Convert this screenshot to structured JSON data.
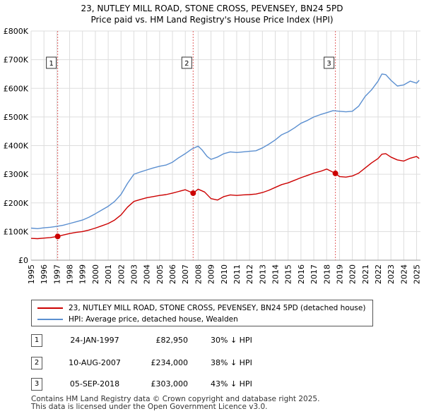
{
  "title_line1": "23, NUTLEY MILL ROAD, STONE CROSS, PEVENSEY, BN24 5PD",
  "title_line2": "Price paid vs. HM Land Registry's House Price Index (HPI)",
  "colors": {
    "property": "#cc0000",
    "hpi": "#5b8fd0",
    "grid": "#dddddd",
    "marker_line": "#e06060"
  },
  "legend": {
    "property_label": "23, NUTLEY MILL ROAD, STONE CROSS, PEVENSEY, BN24 5PD (detached house)",
    "hpi_label": "HPI: Average price, detached house, Wealden"
  },
  "transactions": [
    {
      "num": "1",
      "date": "24-JAN-1997",
      "price": "£82,950",
      "hpi": "30% ↓ HPI"
    },
    {
      "num": "2",
      "date": "10-AUG-2007",
      "price": "£234,000",
      "hpi": "38% ↓ HPI"
    },
    {
      "num": "3",
      "date": "05-SEP-2018",
      "price": "£303,000",
      "hpi": "43% ↓ HPI"
    }
  ],
  "footer": {
    "line1": "Contains HM Land Registry data © Crown copyright and database right 2025.",
    "line2": "This data is licensed under the Open Government Licence v3.0."
  },
  "chart_data": {
    "type": "line",
    "xlim": [
      1995,
      2025.3
    ],
    "ylim": [
      0,
      800000
    ],
    "y_ticks": [
      0,
      100000,
      200000,
      300000,
      400000,
      500000,
      600000,
      700000,
      800000
    ],
    "y_tick_labels": [
      "£0",
      "£100K",
      "£200K",
      "£300K",
      "£400K",
      "£500K",
      "£600K",
      "£700K",
      "£800K"
    ],
    "x_ticks": [
      1995,
      1996,
      1997,
      1998,
      1999,
      2000,
      2001,
      2002,
      2003,
      2004,
      2005,
      2006,
      2007,
      2008,
      2009,
      2010,
      2011,
      2012,
      2013,
      2014,
      2015,
      2016,
      2017,
      2018,
      2019,
      2020,
      2021,
      2022,
      2023,
      2024,
      2025
    ],
    "x_tick_labels": [
      "1995",
      "1996",
      "1997",
      "1998",
      "1999",
      "2000",
      "2001",
      "2002",
      "2003",
      "2004",
      "2005",
      "2006",
      "2007",
      "2008",
      "2009",
      "2010",
      "2011",
      "2012",
      "2013",
      "2014",
      "2015",
      "2016",
      "2017",
      "2018",
      "2019",
      "2020",
      "2021",
      "2022",
      "2023",
      "2024",
      "2025"
    ],
    "markers": [
      {
        "label": "1",
        "x": 1997.07,
        "y": 82950
      },
      {
        "label": "2",
        "x": 2007.61,
        "y": 234000
      },
      {
        "label": "3",
        "x": 2018.68,
        "y": 303000
      }
    ],
    "series": [
      {
        "name": "HPI: Average price, detached house, Wealden",
        "x": [
          1995,
          1995.5,
          1996,
          1996.5,
          1997,
          1997.5,
          1998,
          1998.5,
          1999,
          1999.5,
          2000,
          2000.5,
          2001,
          2001.5,
          2002,
          2002.5,
          2003,
          2003.5,
          2004,
          2004.5,
          2005,
          2005.5,
          2006,
          2006.5,
          2007,
          2007.5,
          2008,
          2008.3,
          2008.7,
          2009,
          2009.5,
          2010,
          2010.5,
          2011,
          2011.5,
          2012,
          2012.5,
          2013,
          2013.5,
          2014,
          2014.5,
          2015,
          2015.5,
          2016,
          2016.5,
          2017,
          2017.5,
          2018,
          2018.5,
          2019,
          2019.5,
          2020,
          2020.5,
          2021,
          2021.5,
          2022,
          2022.3,
          2022.6,
          2023,
          2023.5,
          2024,
          2024.5,
          2025,
          2025.2
        ],
        "values": [
          112000,
          110000,
          113000,
          115000,
          118000,
          122000,
          128000,
          134000,
          140000,
          150000,
          162000,
          175000,
          188000,
          205000,
          230000,
          268000,
          300000,
          308000,
          315000,
          322000,
          328000,
          332000,
          342000,
          358000,
          372000,
          388000,
          398000,
          385000,
          362000,
          352000,
          360000,
          372000,
          378000,
          376000,
          378000,
          380000,
          382000,
          392000,
          405000,
          420000,
          438000,
          448000,
          462000,
          478000,
          488000,
          500000,
          508000,
          515000,
          522000,
          520000,
          518000,
          520000,
          538000,
          572000,
          595000,
          625000,
          650000,
          648000,
          628000,
          608000,
          612000,
          625000,
          618000,
          628000
        ]
      },
      {
        "name": "23, NUTLEY MILL ROAD, STONE CROSS, PEVENSEY, BN24 5PD (detached house)",
        "x": [
          1995,
          1995.5,
          1996,
          1996.5,
          1997.07,
          1997.5,
          1998,
          1998.5,
          1999,
          1999.5,
          2000,
          2000.5,
          2001,
          2001.5,
          2002,
          2002.5,
          2003,
          2003.5,
          2004,
          2004.5,
          2005,
          2005.5,
          2006,
          2006.5,
          2007,
          2007.61,
          2008,
          2008.5,
          2009,
          2009.5,
          2010,
          2010.5,
          2011,
          2011.5,
          2012,
          2012.5,
          2013,
          2013.5,
          2014,
          2014.5,
          2015,
          2015.5,
          2016,
          2016.5,
          2017,
          2017.5,
          2018,
          2018.68,
          2019,
          2019.5,
          2020,
          2020.5,
          2021,
          2021.5,
          2022,
          2022.3,
          2022.6,
          2023,
          2023.5,
          2024,
          2024.5,
          2025,
          2025.2
        ],
        "values": [
          76000,
          75000,
          77000,
          79000,
          82950,
          88000,
          93000,
          97000,
          100000,
          105000,
          112000,
          120000,
          128000,
          140000,
          158000,
          185000,
          205000,
          212000,
          218000,
          222000,
          226000,
          229000,
          234000,
          240000,
          246000,
          234000,
          248000,
          238000,
          215000,
          210000,
          222000,
          228000,
          226000,
          228000,
          229000,
          231000,
          236000,
          244000,
          254000,
          264000,
          270000,
          279000,
          288000,
          296000,
          304000,
          310000,
          318000,
          303000,
          292000,
          290000,
          294000,
          304000,
          322000,
          340000,
          355000,
          370000,
          372000,
          360000,
          350000,
          346000,
          356000,
          362000,
          355000
        ]
      }
    ]
  }
}
